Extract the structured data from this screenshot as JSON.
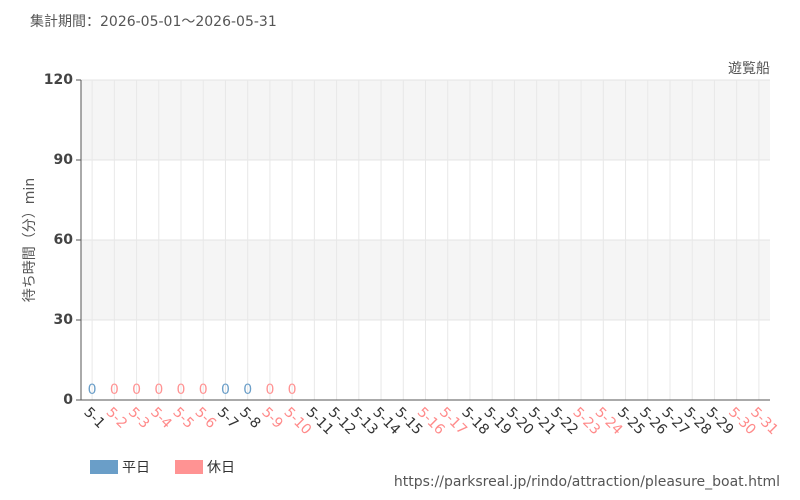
{
  "chart_data": {
    "type": "bar",
    "title": "集計期間：2026-05-01～2026-05-31",
    "subtitle": "遊覧船",
    "ylabel": "待ち時間（分）min",
    "source": "https://parksreal.jp/rindo/attraction/pleasure_boat.html",
    "categories": [
      "5-1",
      "5-2",
      "5-3",
      "5-4",
      "5-5",
      "5-6",
      "5-7",
      "5-8",
      "5-9",
      "5-10",
      "5-11",
      "5-12",
      "5-13",
      "5-14",
      "5-15",
      "5-16",
      "5-17",
      "5-18",
      "5-19",
      "5-20",
      "5-21",
      "5-22",
      "5-23",
      "5-24",
      "5-25",
      "5-26",
      "5-27",
      "5-28",
      "5-29",
      "5-30",
      "5-31"
    ],
    "category_colors": [
      "#333333",
      "#ff8a8a",
      "#ff8a8a",
      "#ff8a8a",
      "#ff8a8a",
      "#ff8a8a",
      "#333333",
      "#333333",
      "#ff8a8a",
      "#ff8a8a",
      "#333333",
      "#333333",
      "#333333",
      "#333333",
      "#333333",
      "#ff8a8a",
      "#ff8a8a",
      "#333333",
      "#333333",
      "#333333",
      "#333333",
      "#333333",
      "#ff8a8a",
      "#ff8a8a",
      "#333333",
      "#333333",
      "#333333",
      "#333333",
      "#333333",
      "#ff8a8a",
      "#ff8a8a"
    ],
    "series": [
      {
        "name": "平日",
        "color": "#6a9ec8",
        "values": [
          0,
          null,
          null,
          null,
          null,
          null,
          0,
          0,
          null,
          null,
          null,
          null,
          null,
          null,
          null,
          null,
          null,
          null,
          null,
          null,
          null,
          null,
          null,
          null,
          null,
          null,
          null,
          null,
          null,
          null,
          null
        ]
      },
      {
        "name": "休日",
        "color": "#ff9393",
        "values": [
          null,
          0,
          0,
          0,
          0,
          0,
          null,
          null,
          0,
          0,
          null,
          null,
          null,
          null,
          null,
          null,
          null,
          null,
          null,
          null,
          null,
          null,
          null,
          null,
          null,
          null,
          null,
          null,
          null,
          null,
          null
        ]
      }
    ],
    "ylim": [
      0,
      120
    ],
    "yticks": [
      0,
      30,
      60,
      90,
      120
    ],
    "grid": true
  }
}
